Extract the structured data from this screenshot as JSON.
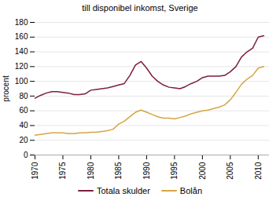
{
  "chart_data": {
    "type": "line",
    "title": "till disponibel inkomst, Sverige",
    "ylabel": "procent",
    "x": [
      1970,
      1971,
      1972,
      1973,
      1974,
      1975,
      1976,
      1977,
      1978,
      1979,
      1980,
      1981,
      1982,
      1983,
      1984,
      1985,
      1986,
      1987,
      1988,
      1989,
      1990,
      1991,
      1992,
      1993,
      1994,
      1995,
      1996,
      1997,
      1998,
      1999,
      2000,
      2001,
      2002,
      2003,
      2004,
      2005,
      2006,
      2007,
      2008,
      2009,
      2010,
      2011
    ],
    "series": [
      {
        "name": "Totala skulder",
        "color": "#7b1f3e",
        "values": [
          77,
          81,
          84,
          86,
          86,
          85,
          84,
          82,
          82,
          83,
          88,
          89,
          90,
          91,
          93,
          95,
          97,
          108,
          122,
          127,
          118,
          107,
          100,
          95,
          92,
          91,
          90,
          93,
          97,
          100,
          105,
          107,
          107,
          107,
          108,
          113,
          120,
          133,
          140,
          145,
          160,
          162
        ]
      },
      {
        "name": "Bolån",
        "color": "#d4a642",
        "values": [
          27,
          28,
          29,
          30,
          30,
          30,
          29,
          29,
          30,
          30,
          31,
          31,
          32,
          33,
          35,
          42,
          46,
          52,
          58,
          61,
          58,
          55,
          52,
          50,
          50,
          49,
          51,
          53,
          56,
          58,
          60,
          61,
          63,
          65,
          68,
          75,
          85,
          96,
          103,
          108,
          118,
          120
        ]
      }
    ],
    "xlim": [
      1970,
      2012
    ],
    "ylim": [
      0,
      180
    ],
    "xticks": [
      1970,
      1975,
      1980,
      1985,
      1990,
      1995,
      2000,
      2005,
      2010
    ],
    "yticks": [
      0,
      20,
      40,
      60,
      80,
      100,
      120,
      140,
      160,
      180
    ],
    "grid": "y",
    "legend": "bottom"
  }
}
